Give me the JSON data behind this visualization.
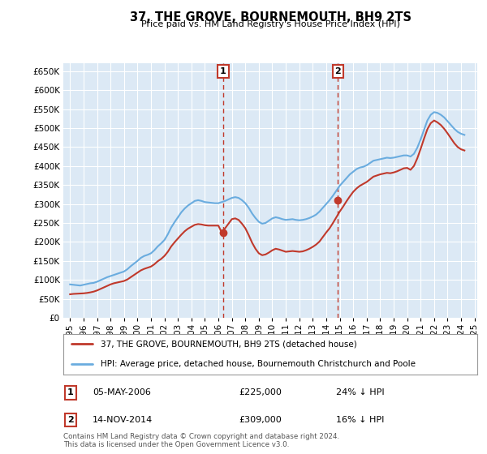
{
  "title": "37, THE GROVE, BOURNEMOUTH, BH9 2TS",
  "subtitle": "Price paid vs. HM Land Registry's House Price Index (HPI)",
  "ylim": [
    0,
    670000
  ],
  "yticks": [
    0,
    50000,
    100000,
    150000,
    200000,
    250000,
    300000,
    350000,
    400000,
    450000,
    500000,
    550000,
    600000,
    650000
  ],
  "bg_color": "#dce9f5",
  "grid_color": "#ffffff",
  "hpi_color": "#6aacdf",
  "price_color": "#c0392b",
  "transaction1": {
    "date": "05-MAY-2006",
    "price": 225000,
    "label": "1",
    "pct": "24% ↓ HPI",
    "x_year": 2006.35
  },
  "transaction2": {
    "date": "14-NOV-2014",
    "price": 309000,
    "label": "2",
    "pct": "16% ↓ HPI",
    "x_year": 2014.87
  },
  "legend_line1": "37, THE GROVE, BOURNEMOUTH, BH9 2TS (detached house)",
  "legend_line2": "HPI: Average price, detached house, Bournemouth Christchurch and Poole",
  "table_row1": [
    "1",
    "05-MAY-2006",
    "£225,000",
    "24% ↓ HPI"
  ],
  "table_row2": [
    "2",
    "14-NOV-2014",
    "£309,000",
    "16% ↓ HPI"
  ],
  "footnote": "Contains HM Land Registry data © Crown copyright and database right 2024.\nThis data is licensed under the Open Government Licence v3.0.",
  "hpi_x": [
    1995.0,
    1995.25,
    1995.5,
    1995.75,
    1996.0,
    1996.25,
    1996.5,
    1996.75,
    1997.0,
    1997.25,
    1997.5,
    1997.75,
    1998.0,
    1998.25,
    1998.5,
    1998.75,
    1999.0,
    1999.25,
    1999.5,
    1999.75,
    2000.0,
    2000.25,
    2000.5,
    2000.75,
    2001.0,
    2001.25,
    2001.5,
    2001.75,
    2002.0,
    2002.25,
    2002.5,
    2002.75,
    2003.0,
    2003.25,
    2003.5,
    2003.75,
    2004.0,
    2004.25,
    2004.5,
    2004.75,
    2005.0,
    2005.25,
    2005.5,
    2005.75,
    2006.0,
    2006.25,
    2006.5,
    2006.75,
    2007.0,
    2007.25,
    2007.5,
    2007.75,
    2008.0,
    2008.25,
    2008.5,
    2008.75,
    2009.0,
    2009.25,
    2009.5,
    2009.75,
    2010.0,
    2010.25,
    2010.5,
    2010.75,
    2011.0,
    2011.25,
    2011.5,
    2011.75,
    2012.0,
    2012.25,
    2012.5,
    2012.75,
    2013.0,
    2013.25,
    2013.5,
    2013.75,
    2014.0,
    2014.25,
    2014.5,
    2014.75,
    2015.0,
    2015.25,
    2015.5,
    2015.75,
    2016.0,
    2016.25,
    2016.5,
    2016.75,
    2017.0,
    2017.25,
    2017.5,
    2017.75,
    2018.0,
    2018.25,
    2018.5,
    2018.75,
    2019.0,
    2019.25,
    2019.5,
    2019.75,
    2020.0,
    2020.25,
    2020.5,
    2020.75,
    2021.0,
    2021.25,
    2021.5,
    2021.75,
    2022.0,
    2022.25,
    2022.5,
    2022.75,
    2023.0,
    2023.25,
    2023.5,
    2023.75,
    2024.0,
    2024.25
  ],
  "hpi_y": [
    88000,
    87000,
    86000,
    85000,
    87000,
    89000,
    91000,
    92000,
    95000,
    99000,
    103000,
    107000,
    110000,
    113000,
    116000,
    119000,
    122000,
    128000,
    136000,
    143000,
    150000,
    158000,
    163000,
    166000,
    170000,
    178000,
    188000,
    196000,
    205000,
    220000,
    238000,
    252000,
    265000,
    278000,
    288000,
    296000,
    302000,
    308000,
    310000,
    308000,
    305000,
    304000,
    303000,
    302000,
    302000,
    305000,
    308000,
    312000,
    316000,
    318000,
    316000,
    310000,
    302000,
    290000,
    275000,
    263000,
    253000,
    248000,
    250000,
    256000,
    262000,
    265000,
    263000,
    260000,
    258000,
    259000,
    260000,
    258000,
    257000,
    258000,
    260000,
    263000,
    267000,
    272000,
    280000,
    290000,
    300000,
    310000,
    322000,
    335000,
    348000,
    358000,
    368000,
    378000,
    385000,
    392000,
    396000,
    398000,
    402000,
    408000,
    414000,
    416000,
    418000,
    420000,
    422000,
    421000,
    422000,
    424000,
    426000,
    428000,
    428000,
    425000,
    432000,
    448000,
    470000,
    495000,
    520000,
    535000,
    542000,
    540000,
    535000,
    528000,
    518000,
    508000,
    498000,
    490000,
    485000,
    482000
  ],
  "price_x": [
    1995.0,
    1995.25,
    1995.5,
    1995.75,
    1996.0,
    1996.25,
    1996.5,
    1996.75,
    1997.0,
    1997.25,
    1997.5,
    1997.75,
    1998.0,
    1998.25,
    1998.5,
    1998.75,
    1999.0,
    1999.25,
    1999.5,
    1999.75,
    2000.0,
    2000.25,
    2000.5,
    2000.75,
    2001.0,
    2001.25,
    2001.5,
    2001.75,
    2002.0,
    2002.25,
    2002.5,
    2002.75,
    2003.0,
    2003.25,
    2003.5,
    2003.75,
    2004.0,
    2004.25,
    2004.5,
    2004.75,
    2005.0,
    2005.25,
    2005.5,
    2005.75,
    2006.0,
    2006.25,
    2006.5,
    2006.75,
    2007.0,
    2007.25,
    2007.5,
    2007.75,
    2008.0,
    2008.25,
    2008.5,
    2008.75,
    2009.0,
    2009.25,
    2009.5,
    2009.75,
    2010.0,
    2010.25,
    2010.5,
    2010.75,
    2011.0,
    2011.25,
    2011.5,
    2011.75,
    2012.0,
    2012.25,
    2012.5,
    2012.75,
    2013.0,
    2013.25,
    2013.5,
    2013.75,
    2014.0,
    2014.25,
    2014.5,
    2014.75,
    2015.0,
    2015.25,
    2015.5,
    2015.75,
    2016.0,
    2016.25,
    2016.5,
    2016.75,
    2017.0,
    2017.25,
    2017.5,
    2017.75,
    2018.0,
    2018.25,
    2018.5,
    2018.75,
    2019.0,
    2019.25,
    2019.5,
    2019.75,
    2020.0,
    2020.25,
    2020.5,
    2020.75,
    2021.0,
    2021.25,
    2021.5,
    2021.75,
    2022.0,
    2022.25,
    2022.5,
    2022.75,
    2023.0,
    2023.25,
    2023.5,
    2023.75,
    2024.0,
    2024.25
  ],
  "price_y": [
    62000,
    63000,
    63500,
    64000,
    64500,
    65500,
    67000,
    69000,
    72000,
    76000,
    80000,
    84000,
    88000,
    91000,
    93000,
    95000,
    97000,
    101000,
    107000,
    113000,
    119000,
    125000,
    129000,
    132000,
    135000,
    141000,
    149000,
    155000,
    163000,
    174000,
    188000,
    199000,
    209000,
    219000,
    228000,
    235000,
    240000,
    245000,
    247000,
    246000,
    244000,
    243000,
    243000,
    243000,
    243000,
    225000,
    236000,
    248000,
    260000,
    262000,
    258000,
    248000,
    236000,
    218000,
    198000,
    182000,
    170000,
    165000,
    167000,
    172000,
    178000,
    182000,
    180000,
    177000,
    174000,
    175000,
    176000,
    175000,
    174000,
    175000,
    178000,
    182000,
    187000,
    193000,
    201000,
    213000,
    225000,
    236000,
    250000,
    265000,
    280000,
    293000,
    307000,
    320000,
    332000,
    341000,
    348000,
    353000,
    358000,
    365000,
    372000,
    375000,
    378000,
    380000,
    382000,
    381000,
    383000,
    386000,
    390000,
    394000,
    395000,
    390000,
    400000,
    420000,
    445000,
    472000,
    497000,
    513000,
    520000,
    515000,
    508000,
    498000,
    486000,
    473000,
    460000,
    450000,
    444000,
    441000
  ],
  "xlim": [
    1994.5,
    2025.2
  ],
  "xtick_years": [
    1995,
    1996,
    1997,
    1998,
    1999,
    2000,
    2001,
    2002,
    2003,
    2004,
    2005,
    2006,
    2007,
    2008,
    2009,
    2010,
    2011,
    2012,
    2013,
    2014,
    2015,
    2016,
    2017,
    2018,
    2019,
    2020,
    2021,
    2022,
    2023,
    2024,
    2025
  ]
}
